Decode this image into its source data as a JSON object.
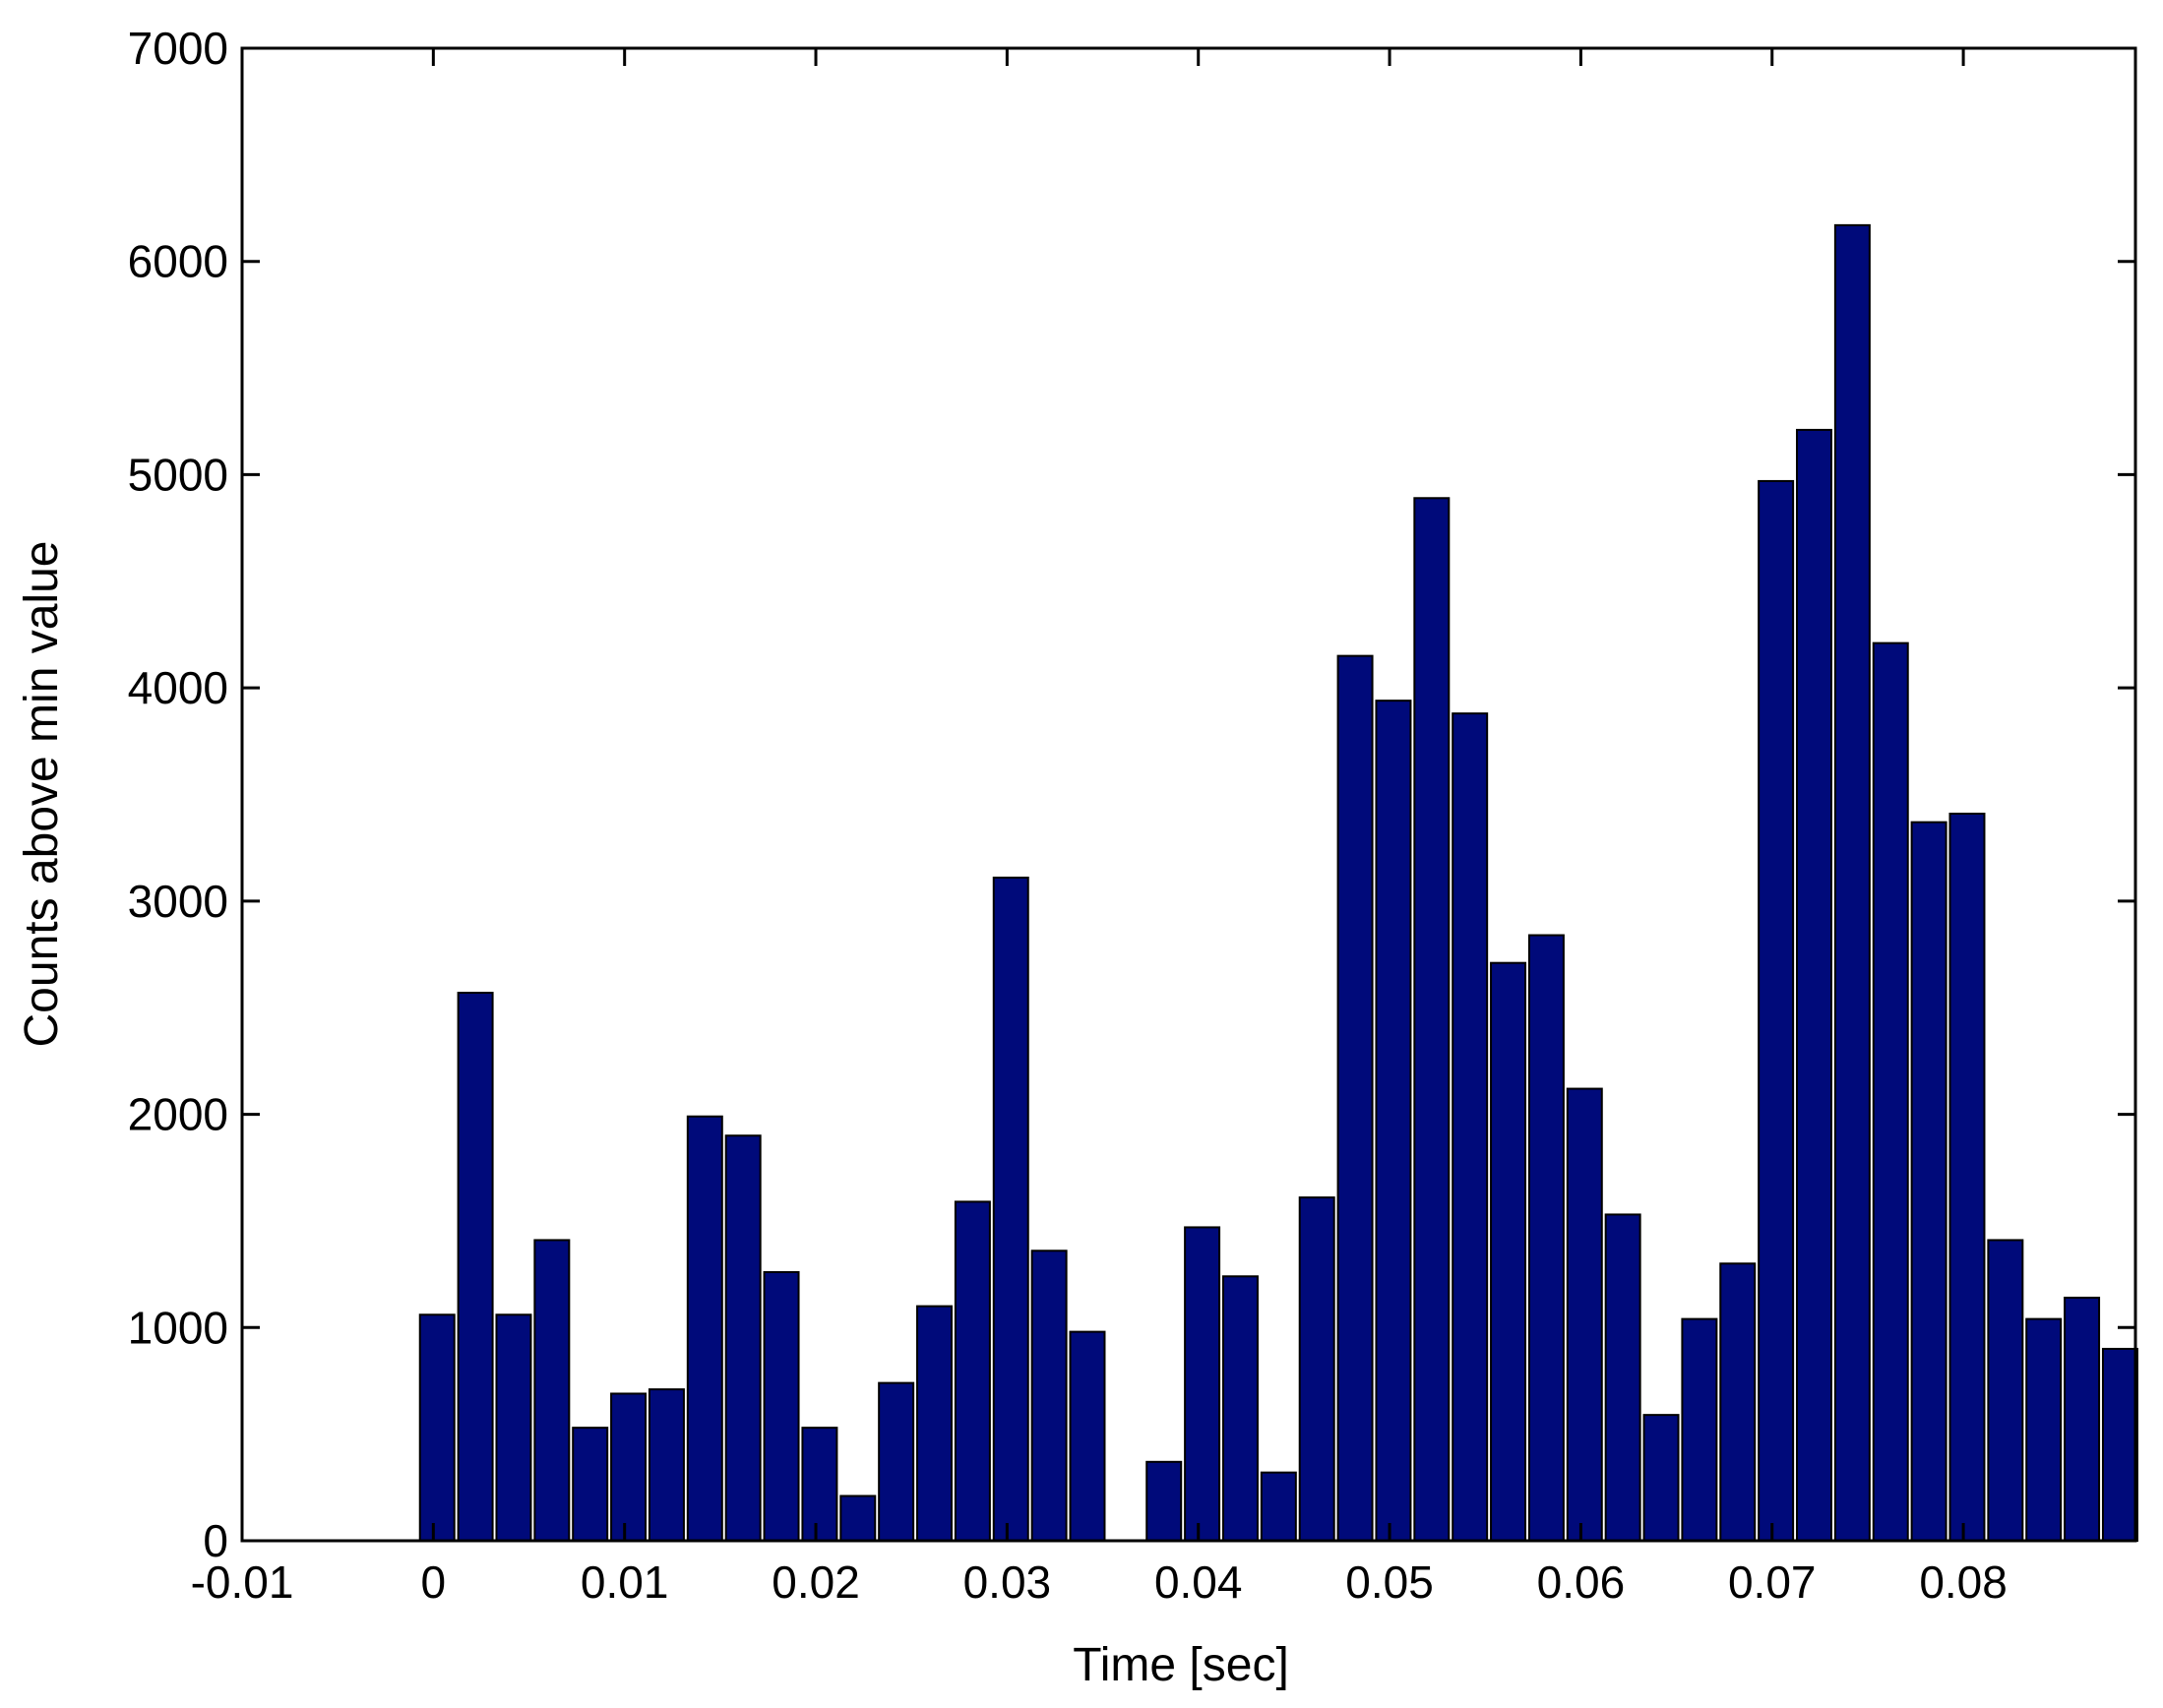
{
  "chart_data": {
    "type": "bar",
    "title": "",
    "xlabel": "Time [sec]",
    "ylabel": "Counts above min value",
    "xlim": [
      -0.01,
      0.089
    ],
    "ylim": [
      0,
      7000
    ],
    "xticks": [
      -0.01,
      0,
      0.01,
      0.02,
      0.03,
      0.04,
      0.05,
      0.06,
      0.07,
      0.08
    ],
    "xtick_labels": [
      "-0.01",
      "0",
      "0.01",
      "0.02",
      "0.03",
      "0.04",
      "0.05",
      "0.06",
      "0.07",
      "0.08"
    ],
    "yticks": [
      0,
      1000,
      2000,
      3000,
      4000,
      5000,
      6000,
      7000
    ],
    "ytick_labels": [
      "0",
      "1000",
      "2000",
      "3000",
      "4000",
      "5000",
      "6000",
      "7000"
    ],
    "bin_width": 0.002,
    "bar_color": "#000a7a",
    "grid": false,
    "x": [
      0.0002,
      0.0022,
      0.0042,
      0.0062,
      0.0082,
      0.0102,
      0.0122,
      0.0142,
      0.0162,
      0.0182,
      0.0202,
      0.0222,
      0.0242,
      0.0262,
      0.0282,
      0.0302,
      0.0322,
      0.0342,
      0.0362,
      0.0382,
      0.0402,
      0.0422,
      0.0442,
      0.0462,
      0.0482,
      0.0502,
      0.0522,
      0.0542,
      0.0562,
      0.0582,
      0.0602,
      0.0622,
      0.0642,
      0.0662,
      0.0682,
      0.0702,
      0.0722,
      0.0742,
      0.0762,
      0.0782,
      0.0802,
      0.0822,
      0.0842,
      0.0862,
      0.0882
    ],
    "values": [
      1060,
      2570,
      1060,
      1410,
      530,
      690,
      710,
      1990,
      1900,
      1260,
      530,
      210,
      740,
      1100,
      1590,
      3110,
      1360,
      980,
      0,
      370,
      1470,
      1240,
      320,
      1610,
      4150,
      3940,
      4890,
      3880,
      2710,
      2840,
      2120,
      1530,
      590,
      1040,
      1300,
      4970,
      5210,
      6170,
      4210,
      3370,
      3410,
      1410,
      1040,
      1140,
      900
    ]
  }
}
